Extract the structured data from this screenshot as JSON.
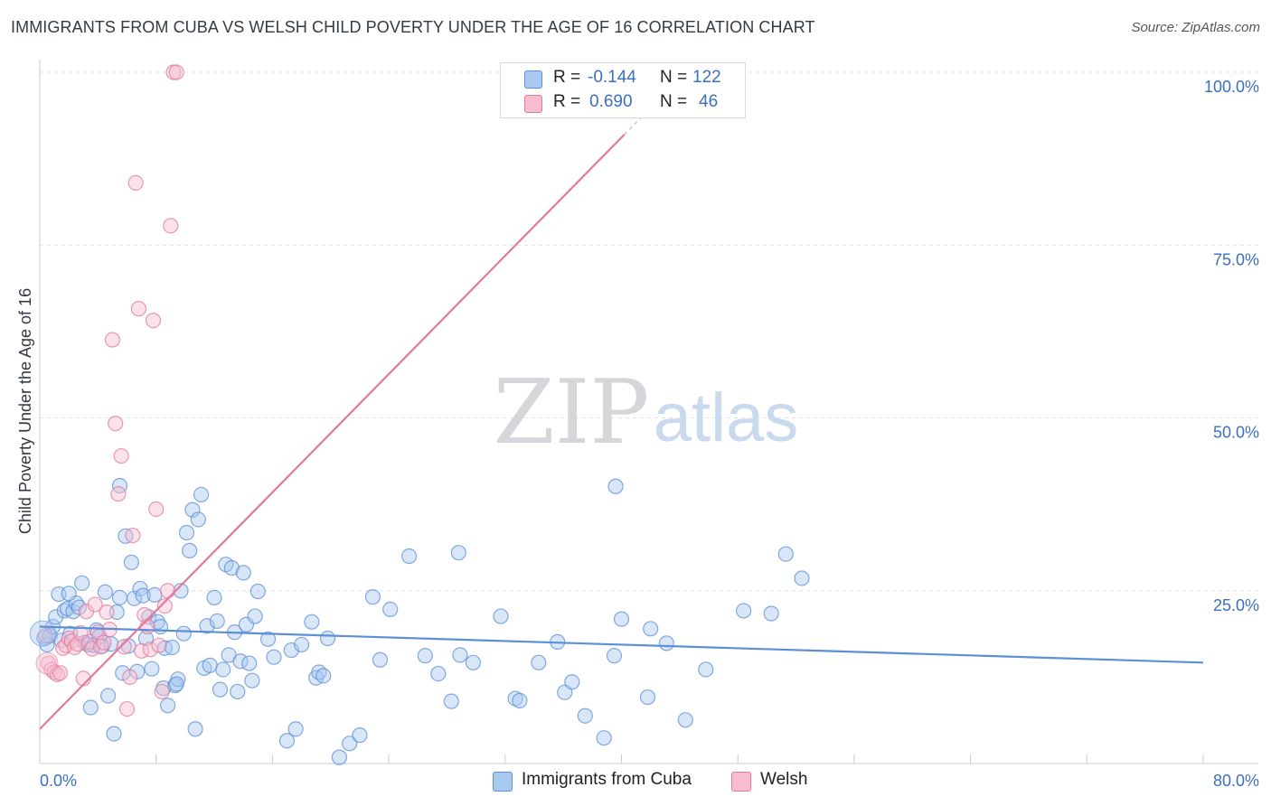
{
  "title": "IMMIGRANTS FROM CUBA VS WELSH CHILD POVERTY UNDER THE AGE OF 16 CORRELATION CHART",
  "source": "Source: ZipAtlas.com",
  "watermark": {
    "zip": "ZIP",
    "atlas": "atlas"
  },
  "legend": {
    "rows": [
      {
        "r_label": "R =",
        "r_value": "-0.144",
        "n_label": "N =",
        "n_value": "122",
        "color": "#a8c8f0",
        "border": "#5b8fd6"
      },
      {
        "r_label": "R =",
        "r_value": "0.690",
        "n_label": "N =",
        "n_value": "46",
        "color": "#f7bcd0",
        "border": "#e07a9c"
      }
    ]
  },
  "bottom_legend": {
    "items": [
      {
        "label": "Immigrants from Cuba",
        "color": "#a8c8f0",
        "border": "#5b8fd6"
      },
      {
        "label": "Welsh",
        "color": "#f7bcd0",
        "border": "#e07a9c"
      }
    ]
  },
  "chart_data": {
    "type": "scatter",
    "title": "IMMIGRANTS FROM CUBA VS WELSH CHILD POVERTY UNDER THE AGE OF 16 CORRELATION CHART",
    "xlabel": "",
    "ylabel": "Child Poverty Under the Age of 16",
    "xlim": [
      0,
      80
    ],
    "ylim": [
      0,
      100
    ],
    "x_tick_labels": [
      "0.0%",
      "80.0%"
    ],
    "y_ticks": [
      25,
      50,
      75,
      100
    ],
    "y_tick_labels": [
      "25.0%",
      "50.0%",
      "75.0%",
      "100.0%"
    ],
    "grid": true,
    "legend_position": "top-center",
    "series": [
      {
        "name": "Immigrants from Cuba",
        "color": "#5b8fd6",
        "fill": "#a8c8f0",
        "trend": {
          "x": [
            0,
            80
          ],
          "y": [
            19.8,
            14.6
          ]
        },
        "points": [
          [
            0.3,
            18.2
          ],
          [
            0.5,
            17.2
          ],
          [
            0.7,
            18.5
          ],
          [
            0.9,
            19.8
          ],
          [
            1.1,
            21.2
          ],
          [
            1.3,
            24.5
          ],
          [
            1.5,
            17.8
          ],
          [
            1.7,
            22.1
          ],
          [
            1.9,
            22.4
          ],
          [
            2.1,
            18.8
          ],
          [
            2.3,
            22.0
          ],
          [
            2.5,
            23.2
          ],
          [
            2.7,
            22.6
          ],
          [
            2.9,
            26.1
          ],
          [
            3.1,
            17.5
          ],
          [
            3.3,
            17.2
          ],
          [
            3.5,
            8.1
          ],
          [
            3.7,
            17.1
          ],
          [
            3.9,
            19.3
          ],
          [
            4.1,
            18.4
          ],
          [
            4.3,
            17.0
          ],
          [
            4.5,
            24.8
          ],
          [
            4.7,
            9.8
          ],
          [
            4.9,
            17.3
          ],
          [
            5.1,
            4.3
          ],
          [
            5.3,
            21.9
          ],
          [
            5.5,
            40.2
          ],
          [
            5.7,
            13.1
          ],
          [
            5.9,
            32.9
          ],
          [
            6.1,
            17.0
          ],
          [
            6.3,
            29.1
          ],
          [
            6.5,
            23.9
          ],
          [
            6.7,
            13.3
          ],
          [
            6.9,
            25.3
          ],
          [
            7.1,
            24.3
          ],
          [
            7.3,
            18.1
          ],
          [
            7.5,
            21.2
          ],
          [
            7.7,
            13.7
          ],
          [
            7.9,
            24.4
          ],
          [
            8.1,
            20.5
          ],
          [
            8.3,
            19.8
          ],
          [
            8.5,
            10.9
          ],
          [
            8.6,
            16.7
          ],
          [
            8.8,
            8.4
          ],
          [
            9.1,
            16.8
          ],
          [
            9.3,
            11.3
          ],
          [
            9.5,
            12.2
          ],
          [
            9.7,
            25.0
          ],
          [
            9.9,
            18.8
          ],
          [
            10.1,
            33.4
          ],
          [
            10.3,
            30.8
          ],
          [
            10.5,
            36.7
          ],
          [
            10.7,
            5.0
          ],
          [
            10.9,
            35.3
          ],
          [
            11.1,
            38.9
          ],
          [
            11.3,
            13.8
          ],
          [
            11.5,
            19.9
          ],
          [
            11.7,
            14.2
          ],
          [
            12.0,
            24.0
          ],
          [
            12.2,
            20.6
          ],
          [
            12.4,
            10.7
          ],
          [
            12.6,
            13.6
          ],
          [
            12.8,
            28.8
          ],
          [
            13.0,
            15.7
          ],
          [
            13.2,
            28.3
          ],
          [
            13.4,
            19.0
          ],
          [
            13.6,
            10.4
          ],
          [
            13.8,
            14.8
          ],
          [
            14.0,
            27.6
          ],
          [
            14.2,
            20.1
          ],
          [
            14.4,
            14.5
          ],
          [
            14.6,
            12.0
          ],
          [
            14.8,
            21.3
          ],
          [
            15.0,
            24.9
          ],
          [
            15.7,
            18.0
          ],
          [
            16.1,
            15.4
          ],
          [
            17.0,
            3.3
          ],
          [
            17.3,
            16.4
          ],
          [
            17.6,
            5.0
          ],
          [
            18.0,
            17.2
          ],
          [
            18.7,
            20.5
          ],
          [
            19.0,
            12.4
          ],
          [
            19.2,
            13.2
          ],
          [
            19.5,
            12.7
          ],
          [
            19.8,
            18.1
          ],
          [
            20.6,
            0.9
          ],
          [
            21.3,
            2.9
          ],
          [
            22.0,
            4.1
          ],
          [
            22.9,
            24.1
          ],
          [
            23.4,
            15.0
          ],
          [
            24.1,
            22.3
          ],
          [
            25.4,
            30.0
          ],
          [
            26.5,
            15.6
          ],
          [
            27.4,
            13.0
          ],
          [
            28.3,
            9.0
          ],
          [
            28.8,
            30.5
          ],
          [
            28.9,
            15.7
          ],
          [
            29.8,
            14.6
          ],
          [
            31.7,
            21.3
          ],
          [
            32.7,
            9.4
          ],
          [
            33.0,
            9.1
          ],
          [
            34.3,
            14.6
          ],
          [
            35.6,
            17.6
          ],
          [
            36.1,
            10.3
          ],
          [
            36.6,
            11.8
          ],
          [
            37.5,
            6.9
          ],
          [
            38.8,
            3.7
          ],
          [
            39.5,
            15.6
          ],
          [
            40.0,
            20.9
          ],
          [
            41.8,
            9.6
          ],
          [
            42.0,
            19.5
          ],
          [
            43.1,
            17.4
          ],
          [
            44.4,
            6.3
          ],
          [
            45.8,
            13.6
          ],
          [
            48.4,
            22.1
          ],
          [
            50.3,
            21.7
          ],
          [
            51.3,
            30.3
          ],
          [
            52.4,
            26.8
          ],
          [
            9.4,
            11.5
          ],
          [
            2.0,
            24.6
          ],
          [
            39.6,
            40.1
          ],
          [
            5.5,
            24.0
          ]
        ]
      },
      {
        "name": "Welsh",
        "color": "#e07a9c",
        "fill": "#f7bcd0",
        "trend": {
          "x": [
            0,
            40.2
          ],
          "y": [
            5.0,
            91.0
          ]
        },
        "points": [
          [
            0.4,
            18.5
          ],
          [
            0.6,
            14.5
          ],
          [
            0.8,
            13.6
          ],
          [
            1.0,
            13.2
          ],
          [
            1.2,
            12.9
          ],
          [
            1.4,
            13.1
          ],
          [
            1.6,
            16.7
          ],
          [
            1.8,
            17.1
          ],
          [
            2.0,
            18.1
          ],
          [
            2.2,
            17.7
          ],
          [
            2.4,
            16.8
          ],
          [
            2.6,
            17.3
          ],
          [
            2.8,
            18.9
          ],
          [
            3.0,
            12.3
          ],
          [
            3.2,
            22.0
          ],
          [
            3.4,
            17.6
          ],
          [
            3.6,
            16.6
          ],
          [
            3.8,
            23.0
          ],
          [
            4.0,
            19.0
          ],
          [
            4.2,
            16.9
          ],
          [
            4.4,
            17.5
          ],
          [
            4.6,
            21.9
          ],
          [
            4.8,
            19.4
          ],
          [
            5.0,
            61.3
          ],
          [
            5.2,
            49.2
          ],
          [
            5.4,
            39.0
          ],
          [
            5.6,
            44.5
          ],
          [
            5.8,
            16.9
          ],
          [
            6.0,
            7.9
          ],
          [
            6.2,
            12.5
          ],
          [
            6.4,
            33.0
          ],
          [
            6.6,
            84.0
          ],
          [
            6.8,
            65.8
          ],
          [
            7.0,
            16.3
          ],
          [
            7.2,
            21.5
          ],
          [
            7.4,
            19.8
          ],
          [
            7.6,
            16.5
          ],
          [
            7.8,
            64.1
          ],
          [
            8.0,
            36.8
          ],
          [
            8.2,
            17.1
          ],
          [
            8.4,
            10.4
          ],
          [
            8.6,
            22.8
          ],
          [
            8.8,
            25.0
          ],
          [
            9.0,
            77.8
          ],
          [
            9.2,
            100.0
          ],
          [
            9.4,
            100.0
          ]
        ]
      }
    ]
  }
}
